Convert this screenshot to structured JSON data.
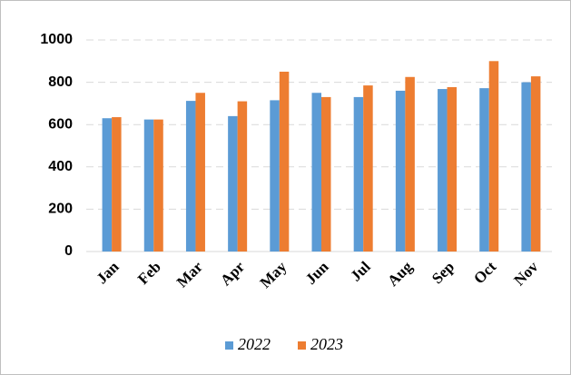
{
  "chart_data": {
    "type": "bar",
    "categories": [
      "Jan",
      "Feb",
      "Mar",
      "Apr",
      "May",
      "Jun",
      "Jul",
      "Aug",
      "Sep",
      "Oct",
      "Nov"
    ],
    "series": [
      {
        "name": "2022",
        "color": "#5b9bd5",
        "values": [
          630,
          624,
          712,
          640,
          715,
          750,
          730,
          760,
          768,
          772,
          800
        ]
      },
      {
        "name": "2023",
        "color": "#ed7d31",
        "values": [
          635,
          624,
          750,
          710,
          850,
          730,
          785,
          825,
          777,
          900,
          828
        ]
      }
    ],
    "ylim": [
      0,
      1000
    ],
    "yticks": [
      0,
      200,
      400,
      600,
      800,
      1000
    ],
    "grid": true
  }
}
